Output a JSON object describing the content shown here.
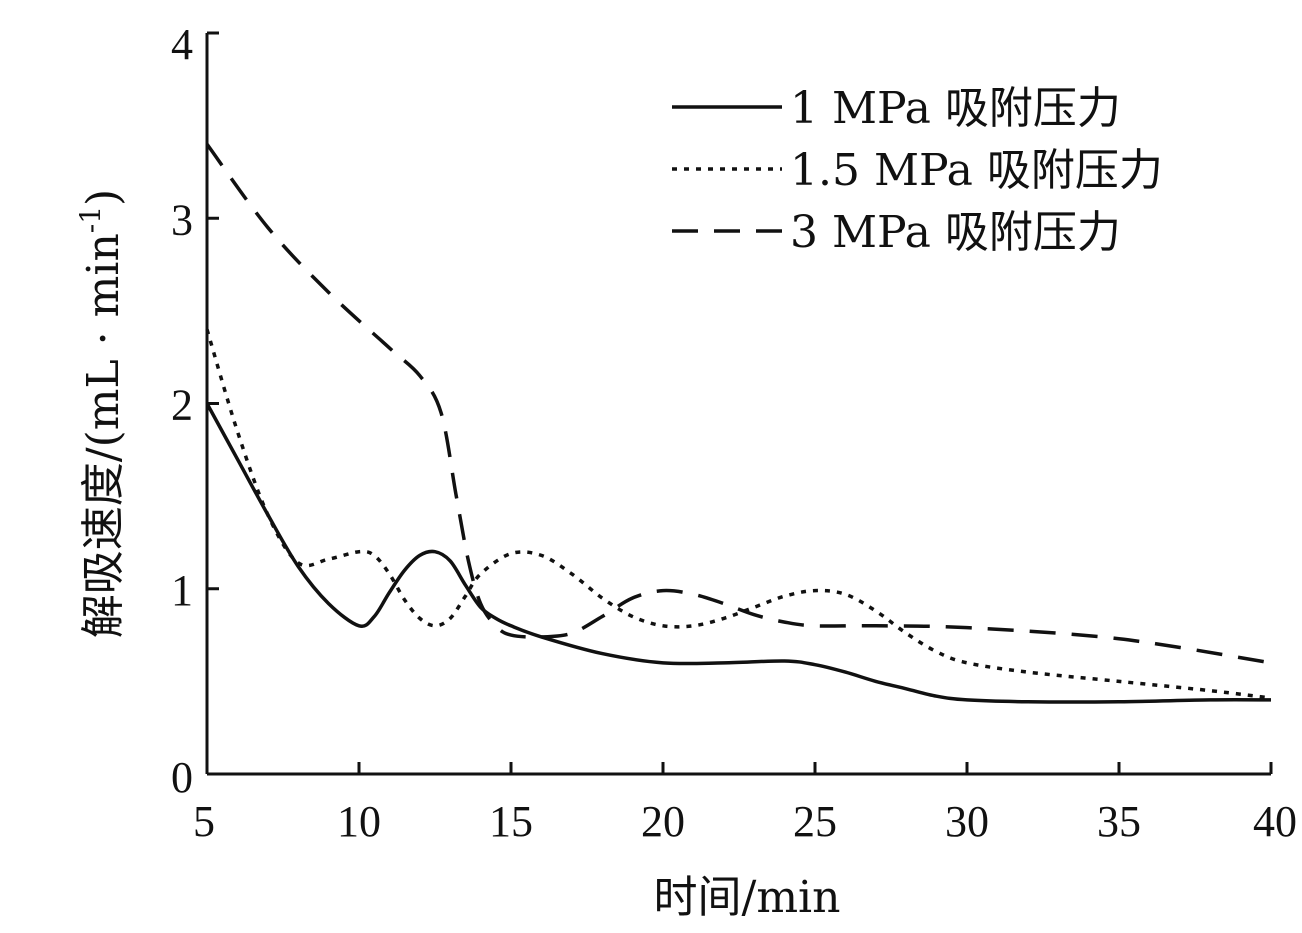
{
  "chart_data": {
    "type": "line",
    "xlabel": "时间/min",
    "ylabel": "解吸速度/(mL · min",
    "ylabel_superscript": "-1",
    "ylabel_close": ")",
    "xlim": [
      5,
      40
    ],
    "ylim": [
      0,
      4
    ],
    "xticks": [
      5,
      10,
      15,
      20,
      25,
      30,
      35,
      40
    ],
    "yticks": [
      0,
      1,
      2,
      3,
      4
    ],
    "grid": false,
    "legend_position": "top-right",
    "series": [
      {
        "name": "1 MPa 吸附压力",
        "style": "solid",
        "color": "#111111",
        "x": [
          5,
          6,
          7,
          8,
          9,
          10,
          10.5,
          11,
          11.5,
          12,
          12.5,
          13,
          13.5,
          14,
          14.5,
          15,
          16,
          18,
          20,
          22,
          24,
          25,
          26,
          27,
          28,
          29,
          30,
          32,
          35,
          38,
          40
        ],
        "y": [
          2.0,
          1.7,
          1.4,
          1.12,
          0.92,
          0.8,
          0.85,
          0.98,
          1.1,
          1.18,
          1.2,
          1.15,
          1.02,
          0.9,
          0.84,
          0.8,
          0.74,
          0.65,
          0.6,
          0.6,
          0.61,
          0.59,
          0.55,
          0.5,
          0.46,
          0.42,
          0.4,
          0.39,
          0.39,
          0.4,
          0.4
        ]
      },
      {
        "name": "1.5 MPa 吸附压力",
        "style": "dotted",
        "color": "#111111",
        "x": [
          5,
          6,
          7,
          8,
          9,
          10,
          10.5,
          11,
          11.5,
          12,
          12.5,
          13,
          13.5,
          14,
          15,
          16,
          17,
          18,
          19,
          20,
          21,
          22,
          23,
          24,
          25,
          26,
          27,
          28,
          29,
          30,
          32,
          35,
          38,
          40
        ],
        "y": [
          2.4,
          1.85,
          1.4,
          1.14,
          1.16,
          1.2,
          1.18,
          1.08,
          0.94,
          0.84,
          0.8,
          0.84,
          0.96,
          1.08,
          1.19,
          1.18,
          1.08,
          0.95,
          0.85,
          0.8,
          0.8,
          0.84,
          0.9,
          0.96,
          0.99,
          0.97,
          0.88,
          0.76,
          0.66,
          0.6,
          0.55,
          0.5,
          0.45,
          0.41
        ]
      },
      {
        "name": "3 MPa 吸附压力",
        "style": "dashed",
        "color": "#111111",
        "x": [
          5,
          7,
          9,
          11,
          12,
          12.7,
          13.2,
          13.6,
          14,
          14.5,
          15,
          16,
          17,
          18,
          19,
          20,
          21,
          22,
          23,
          24,
          25,
          27,
          30,
          35,
          40
        ],
        "y": [
          3.4,
          2.95,
          2.6,
          2.3,
          2.15,
          1.95,
          1.5,
          1.15,
          0.92,
          0.8,
          0.75,
          0.74,
          0.76,
          0.85,
          0.95,
          0.99,
          0.97,
          0.92,
          0.86,
          0.82,
          0.8,
          0.8,
          0.79,
          0.73,
          0.6
        ]
      }
    ]
  }
}
